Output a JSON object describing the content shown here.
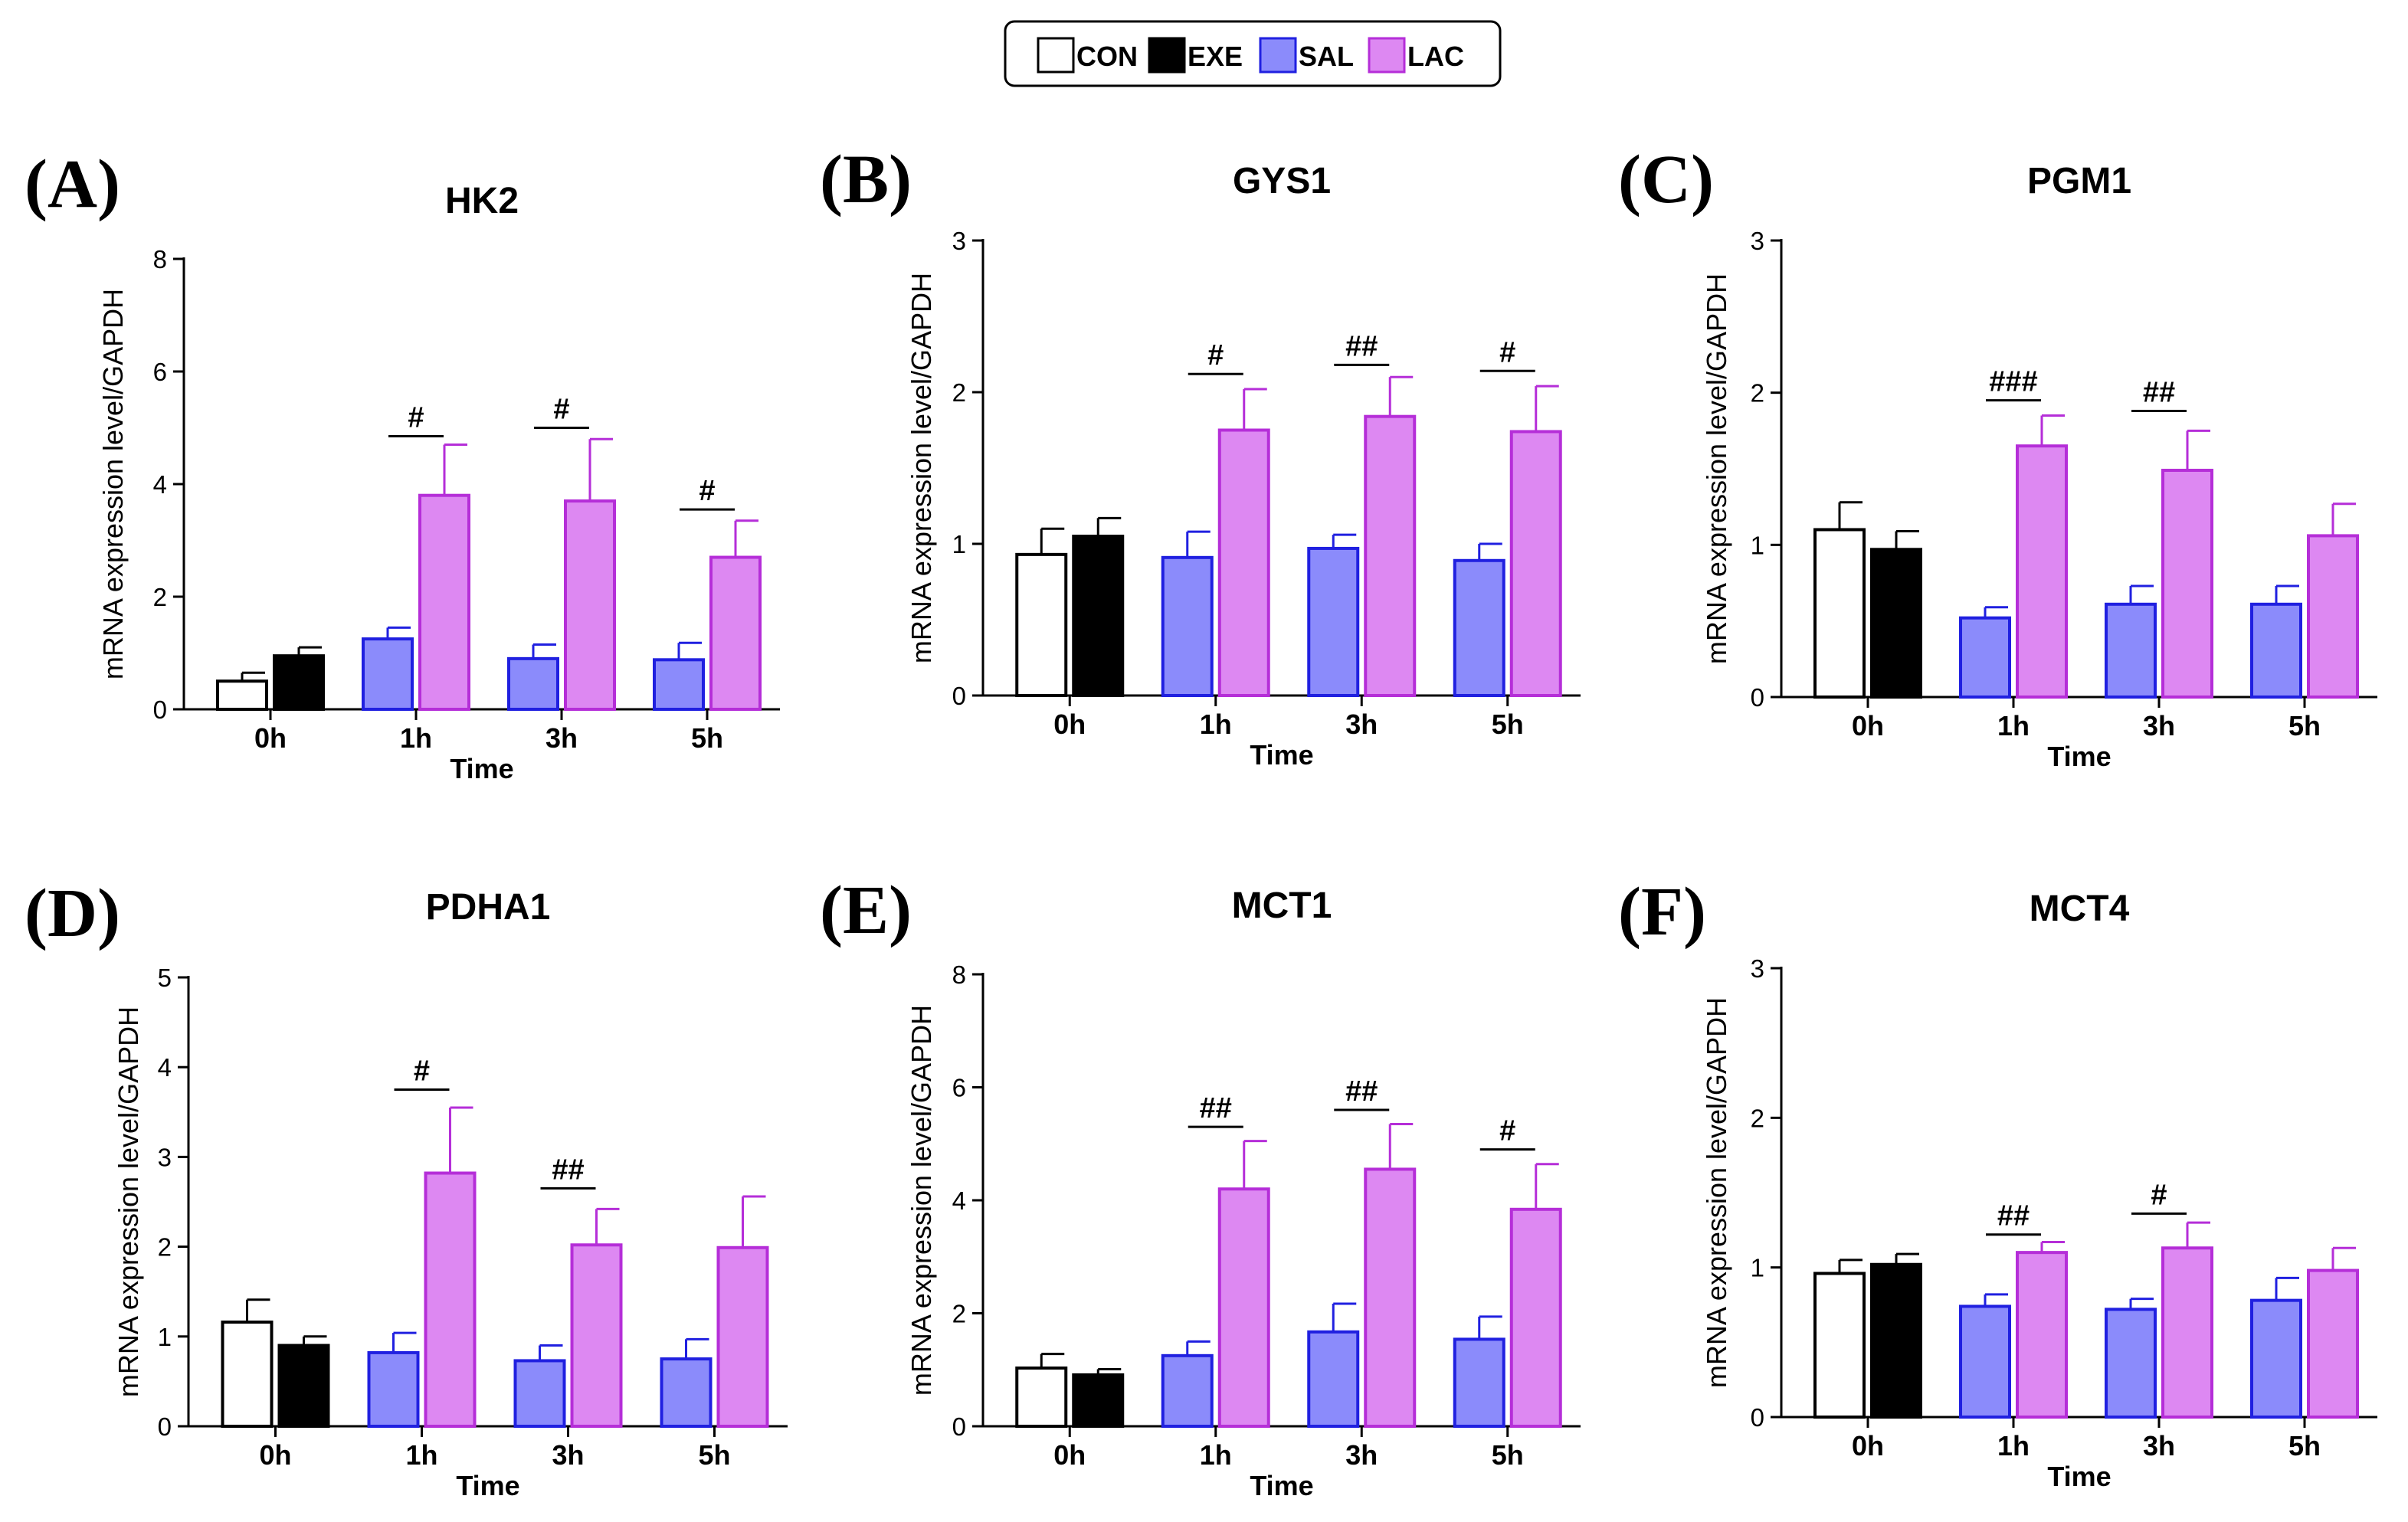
{
  "legend": {
    "entries": [
      {
        "name": "CON",
        "fill": "#ffffff",
        "stroke": "#000000"
      },
      {
        "name": "EXE",
        "fill": "#000000",
        "stroke": "#000000"
      },
      {
        "name": "SAL",
        "fill": "#8b8bfb",
        "stroke": "#2020e0"
      },
      {
        "name": "LAC",
        "fill": "#dd88f2",
        "stroke": "#b52ed8"
      }
    ]
  },
  "chart_data": [
    {
      "panel": "(A)",
      "type": "bar",
      "title": "HK2",
      "xlabel": "Time",
      "ylabel": "mRNA expression level/GAPDH",
      "ylim": [
        0,
        8
      ],
      "yticks": [
        "0",
        "2",
        "4",
        "6",
        "8"
      ],
      "categories": [
        "0h",
        "1h",
        "3h",
        "5h"
      ],
      "series": [
        {
          "name": "CON",
          "values": [
            0.5,
            null,
            null,
            null
          ],
          "errors": [
            0.15,
            null,
            null,
            null
          ]
        },
        {
          "name": "EXE",
          "values": [
            0.95,
            null,
            null,
            null
          ],
          "errors": [
            0.15,
            null,
            null,
            null
          ]
        },
        {
          "name": "SAL",
          "values": [
            null,
            1.25,
            0.9,
            0.88
          ],
          "errors": [
            null,
            0.2,
            0.25,
            0.3
          ]
        },
        {
          "name": "LAC",
          "values": [
            null,
            3.8,
            3.7,
            2.7
          ],
          "errors": [
            null,
            0.9,
            1.1,
            0.65
          ]
        }
      ],
      "significance": [
        {
          "category": "1h",
          "label": "#",
          "y": 4.85
        },
        {
          "category": "3h",
          "label": "#",
          "y": 5.0
        },
        {
          "category": "5h",
          "label": "#",
          "y": 3.55
        }
      ]
    },
    {
      "panel": "(B)",
      "type": "bar",
      "title": "GYS1",
      "xlabel": "Time",
      "ylabel": "mRNA expression level/GAPDH",
      "ylim": [
        0,
        3
      ],
      "yticks": [
        "0",
        "1",
        "2",
        "3"
      ],
      "categories": [
        "0h",
        "1h",
        "3h",
        "5h"
      ],
      "series": [
        {
          "name": "CON",
          "values": [
            0.93,
            null,
            null,
            null
          ],
          "errors": [
            0.17,
            null,
            null,
            null
          ]
        },
        {
          "name": "EXE",
          "values": [
            1.05,
            null,
            null,
            null
          ],
          "errors": [
            0.12,
            null,
            null,
            null
          ]
        },
        {
          "name": "SAL",
          "values": [
            null,
            0.91,
            0.97,
            0.89
          ],
          "errors": [
            null,
            0.17,
            0.09,
            0.11
          ]
        },
        {
          "name": "LAC",
          "values": [
            null,
            1.75,
            1.84,
            1.74
          ],
          "errors": [
            null,
            0.27,
            0.26,
            0.3
          ]
        }
      ],
      "significance": [
        {
          "category": "1h",
          "label": "#",
          "y": 2.12
        },
        {
          "category": "3h",
          "label": "##",
          "y": 2.18
        },
        {
          "category": "5h",
          "label": "#",
          "y": 2.14
        }
      ]
    },
    {
      "panel": "(C)",
      "type": "bar",
      "title": "PGM1",
      "xlabel": "Time",
      "ylabel": "mRNA expression level/GAPDH",
      "ylim": [
        0,
        3
      ],
      "yticks": [
        "0",
        "1",
        "2",
        "3"
      ],
      "categories": [
        "0h",
        "1h",
        "3h",
        "5h"
      ],
      "series": [
        {
          "name": "CON",
          "values": [
            1.1,
            null,
            null,
            null
          ],
          "errors": [
            0.18,
            null,
            null,
            null
          ]
        },
        {
          "name": "EXE",
          "values": [
            0.97,
            null,
            null,
            null
          ],
          "errors": [
            0.12,
            null,
            null,
            null
          ]
        },
        {
          "name": "SAL",
          "values": [
            null,
            0.52,
            0.61,
            0.61
          ],
          "errors": [
            null,
            0.07,
            0.12,
            0.12
          ]
        },
        {
          "name": "LAC",
          "values": [
            null,
            1.65,
            1.49,
            1.06
          ],
          "errors": [
            null,
            0.2,
            0.26,
            0.21
          ]
        }
      ],
      "significance": [
        {
          "category": "1h",
          "label": "###",
          "y": 1.95
        },
        {
          "category": "3h",
          "label": "##",
          "y": 1.88
        }
      ]
    },
    {
      "panel": "(D)",
      "type": "bar",
      "title": "PDHA1",
      "xlabel": "Time",
      "ylabel": "mRNA expression level/GAPDH",
      "ylim": [
        0,
        5
      ],
      "yticks": [
        "0",
        "1",
        "2",
        "3",
        "4",
        "5"
      ],
      "categories": [
        "0h",
        "1h",
        "3h",
        "5h"
      ],
      "series": [
        {
          "name": "CON",
          "values": [
            1.16,
            null,
            null,
            null
          ],
          "errors": [
            0.25,
            null,
            null,
            null
          ]
        },
        {
          "name": "EXE",
          "values": [
            0.9,
            null,
            null,
            null
          ],
          "errors": [
            0.1,
            null,
            null,
            null
          ]
        },
        {
          "name": "SAL",
          "values": [
            null,
            0.82,
            0.73,
            0.75
          ],
          "errors": [
            null,
            0.22,
            0.17,
            0.22
          ]
        },
        {
          "name": "LAC",
          "values": [
            null,
            2.82,
            2.02,
            1.99
          ],
          "errors": [
            null,
            0.73,
            0.4,
            0.57
          ]
        }
      ],
      "significance": [
        {
          "category": "1h",
          "label": "#",
          "y": 3.75
        },
        {
          "category": "3h",
          "label": "##",
          "y": 2.65
        }
      ]
    },
    {
      "panel": "(E)",
      "type": "bar",
      "title": "MCT1",
      "xlabel": "Time",
      "ylabel": "mRNA expression level/GAPDH",
      "ylim": [
        0,
        8
      ],
      "yticks": [
        "0",
        "2",
        "4",
        "6",
        "8"
      ],
      "categories": [
        "0h",
        "1h",
        "3h",
        "5h"
      ],
      "series": [
        {
          "name": "CON",
          "values": [
            1.03,
            null,
            null,
            null
          ],
          "errors": [
            0.25,
            null,
            null,
            null
          ]
        },
        {
          "name": "EXE",
          "values": [
            0.91,
            null,
            null,
            null
          ],
          "errors": [
            0.1,
            null,
            null,
            null
          ]
        },
        {
          "name": "SAL",
          "values": [
            null,
            1.25,
            1.67,
            1.54
          ],
          "errors": [
            null,
            0.25,
            0.5,
            0.4
          ]
        },
        {
          "name": "LAC",
          "values": [
            null,
            4.2,
            4.55,
            3.84
          ],
          "errors": [
            null,
            0.85,
            0.8,
            0.8
          ]
        }
      ],
      "significance": [
        {
          "category": "1h",
          "label": "##",
          "y": 5.3
        },
        {
          "category": "3h",
          "label": "##",
          "y": 5.6
        },
        {
          "category": "5h",
          "label": "#",
          "y": 4.9
        }
      ]
    },
    {
      "panel": "(F)",
      "type": "bar",
      "title": "MCT4",
      "xlabel": "Time",
      "ylabel": "mRNA expression level/GAPDH",
      "ylim": [
        0,
        3
      ],
      "yticks": [
        "0",
        "1",
        "2",
        "3"
      ],
      "categories": [
        "0h",
        "1h",
        "3h",
        "5h"
      ],
      "series": [
        {
          "name": "CON",
          "values": [
            0.96,
            null,
            null,
            null
          ],
          "errors": [
            0.09,
            null,
            null,
            null
          ]
        },
        {
          "name": "EXE",
          "values": [
            1.02,
            null,
            null,
            null
          ],
          "errors": [
            0.07,
            null,
            null,
            null
          ]
        },
        {
          "name": "SAL",
          "values": [
            null,
            0.74,
            0.72,
            0.78
          ],
          "errors": [
            null,
            0.08,
            0.07,
            0.15
          ]
        },
        {
          "name": "LAC",
          "values": [
            null,
            1.1,
            1.13,
            0.98
          ],
          "errors": [
            null,
            0.07,
            0.17,
            0.15
          ]
        }
      ],
      "significance": [
        {
          "category": "1h",
          "label": "##",
          "y": 1.22
        },
        {
          "category": "3h",
          "label": "#",
          "y": 1.36
        }
      ]
    }
  ]
}
